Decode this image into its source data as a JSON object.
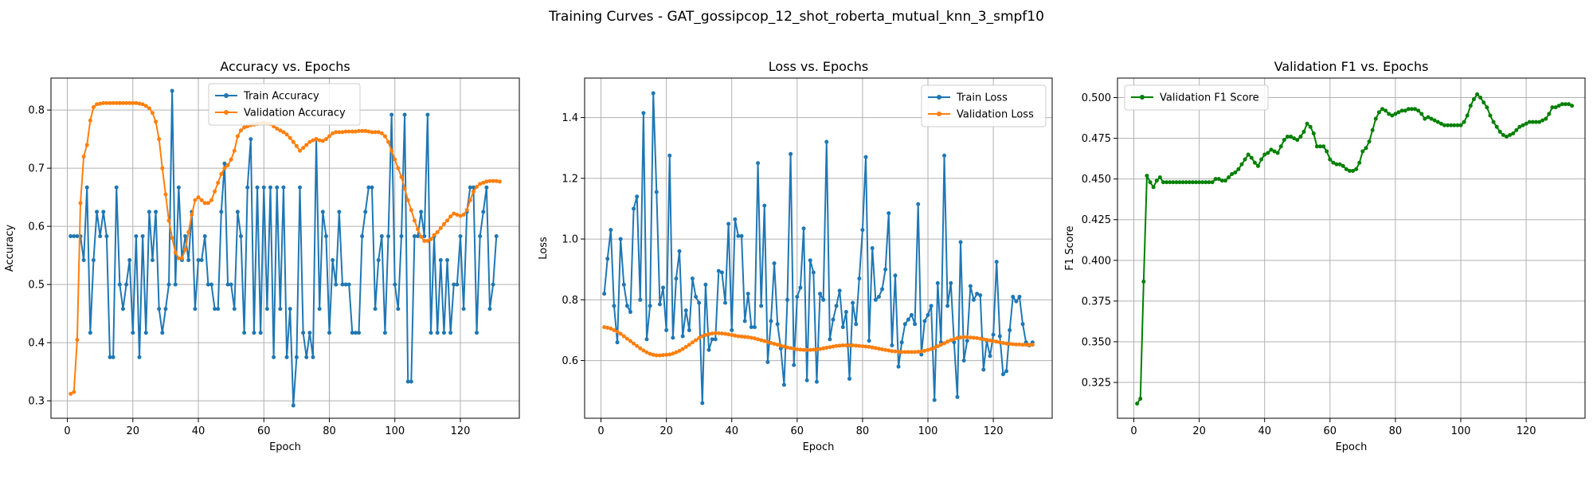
{
  "suptitle": "Training Curves - GAT_gossipcop_12_shot_roberta_mutual_knn_3_smpf10",
  "colors": {
    "blue": "#1f77b4",
    "orange": "#ff7f0e",
    "green": "#008000",
    "grid": "#b0b0b0"
  },
  "chart_data": [
    {
      "type": "line",
      "title": "Accuracy vs. Epochs",
      "xlabel": "Epoch",
      "ylabel": "Accuracy",
      "xlim": [
        -5,
        138
      ],
      "ylim": [
        0.27,
        0.855
      ],
      "xticks": [
        0,
        20,
        40,
        60,
        80,
        100,
        120
      ],
      "yticks": [
        0.3,
        0.4,
        0.5,
        0.6,
        0.7,
        0.8
      ],
      "grid": true,
      "legend": "upper-center",
      "series": [
        {
          "name": "Train Accuracy",
          "color": "#1f77b4",
          "values": [
            0.583,
            0.583,
            0.583,
            0.583,
            0.542,
            0.667,
            0.417,
            0.542,
            0.625,
            0.583,
            0.625,
            0.583,
            0.375,
            0.375,
            0.667,
            0.5,
            0.458,
            0.5,
            0.542,
            0.417,
            0.583,
            0.375,
            0.583,
            0.417,
            0.625,
            0.542,
            0.625,
            0.458,
            0.417,
            0.458,
            0.5,
            0.833,
            0.5,
            0.667,
            0.542,
            0.583,
            0.542,
            0.625,
            0.458,
            0.542,
            0.542,
            0.583,
            0.5,
            0.5,
            0.458,
            0.458,
            0.625,
            0.708,
            0.5,
            0.5,
            0.458,
            0.625,
            0.583,
            0.417,
            0.667,
            0.75,
            0.417,
            0.667,
            0.417,
            0.667,
            0.458,
            0.667,
            0.375,
            0.667,
            0.458,
            0.667,
            0.375,
            0.458,
            0.292,
            0.375,
            0.667,
            0.417,
            0.375,
            0.417,
            0.375,
            0.75,
            0.458,
            0.625,
            0.583,
            0.417,
            0.542,
            0.5,
            0.625,
            0.5,
            0.5,
            0.5,
            0.417,
            0.417,
            0.417,
            0.583,
            0.625,
            0.667,
            0.667,
            0.458,
            0.542,
            0.583,
            0.417,
            0.583,
            0.792,
            0.5,
            0.458,
            0.583,
            0.792,
            0.333,
            0.333,
            0.583,
            0.583,
            0.625,
            0.583,
            0.792,
            0.417,
            0.583,
            0.417,
            0.542,
            0.417,
            0.542,
            0.417,
            0.5,
            0.5,
            0.583,
            0.458,
            0.625,
            0.667,
            0.667,
            0.417,
            0.583,
            0.625,
            0.667,
            0.458,
            0.5,
            0.583
          ]
        },
        {
          "name": "Validation Accuracy",
          "color": "#ff7f0e",
          "values": [
            0.312,
            0.315,
            0.405,
            0.64,
            0.72,
            0.74,
            0.782,
            0.805,
            0.81,
            0.811,
            0.812,
            0.812,
            0.812,
            0.812,
            0.812,
            0.812,
            0.812,
            0.812,
            0.812,
            0.812,
            0.812,
            0.811,
            0.81,
            0.807,
            0.803,
            0.795,
            0.78,
            0.75,
            0.7,
            0.655,
            0.61,
            0.58,
            0.555,
            0.545,
            0.545,
            0.56,
            0.59,
            0.62,
            0.645,
            0.65,
            0.645,
            0.64,
            0.64,
            0.645,
            0.66,
            0.675,
            0.69,
            0.7,
            0.705,
            0.715,
            0.73,
            0.755,
            0.765,
            0.77,
            0.772,
            0.774,
            0.775,
            0.776,
            0.777,
            0.778,
            0.777,
            0.776,
            0.772,
            0.768,
            0.765,
            0.762,
            0.758,
            0.752,
            0.745,
            0.738,
            0.73,
            0.735,
            0.74,
            0.745,
            0.748,
            0.75,
            0.748,
            0.747,
            0.75,
            0.755,
            0.76,
            0.762,
            0.762,
            0.762,
            0.763,
            0.763,
            0.763,
            0.763,
            0.764,
            0.764,
            0.764,
            0.763,
            0.762,
            0.762,
            0.762,
            0.76,
            0.755,
            0.745,
            0.73,
            0.715,
            0.7,
            0.685,
            0.665,
            0.645,
            0.628,
            0.61,
            0.595,
            0.582,
            0.575,
            0.575,
            0.578,
            0.585,
            0.59,
            0.597,
            0.604,
            0.61,
            0.617,
            0.622,
            0.62,
            0.618,
            0.62,
            0.628,
            0.645,
            0.66,
            0.668,
            0.673,
            0.675,
            0.677,
            0.678,
            0.678,
            0.678,
            0.677
          ]
        }
      ]
    },
    {
      "type": "line",
      "title": "Loss vs. Epochs",
      "xlabel": "Epoch",
      "ylabel": "Loss",
      "xlim": [
        -5,
        138
      ],
      "ylim": [
        0.41,
        1.53
      ],
      "xticks": [
        0,
        20,
        40,
        60,
        80,
        100,
        120
      ],
      "yticks": [
        0.6,
        0.8,
        1.0,
        1.2,
        1.4
      ],
      "grid": true,
      "legend": "upper-right",
      "series": [
        {
          "name": "Train Loss",
          "color": "#1f77b4",
          "values": [
            0.82,
            0.935,
            1.03,
            0.78,
            0.66,
            1.0,
            0.85,
            0.78,
            0.76,
            1.1,
            1.14,
            0.8,
            1.415,
            0.67,
            0.78,
            1.48,
            1.155,
            0.785,
            0.84,
            0.7,
            1.275,
            0.675,
            0.87,
            0.96,
            0.68,
            0.765,
            0.7,
            0.87,
            0.81,
            0.79,
            0.46,
            0.85,
            0.635,
            0.67,
            0.67,
            0.895,
            0.89,
            0.79,
            1.05,
            0.7,
            1.065,
            1.01,
            1.01,
            0.73,
            0.82,
            0.71,
            0.71,
            1.25,
            0.78,
            1.11,
            0.595,
            0.73,
            0.92,
            0.72,
            0.64,
            0.52,
            0.8,
            1.28,
            0.585,
            0.81,
            0.84,
            1.035,
            0.535,
            0.93,
            0.89,
            0.53,
            0.82,
            0.8,
            1.32,
            0.67,
            0.735,
            0.78,
            0.83,
            0.71,
            0.76,
            0.54,
            0.79,
            0.72,
            0.87,
            1.03,
            1.27,
            0.665,
            0.97,
            0.8,
            0.81,
            0.835,
            0.9,
            1.085,
            0.65,
            0.88,
            0.58,
            0.66,
            0.72,
            0.735,
            0.75,
            0.72,
            1.115,
            0.62,
            0.73,
            0.75,
            0.78,
            0.47,
            0.855,
            0.66,
            1.275,
            0.78,
            0.855,
            0.66,
            0.48,
            0.99,
            0.6,
            0.665,
            0.845,
            0.8,
            0.82,
            0.815,
            0.57,
            0.665,
            0.615,
            0.685,
            0.925,
            0.68,
            0.555,
            0.565,
            0.7,
            0.81,
            0.795,
            0.81,
            0.72,
            0.66,
            0.65,
            0.66
          ]
        },
        {
          "name": "Validation Loss",
          "color": "#ff7f0e",
          "values": [
            0.71,
            0.708,
            0.705,
            0.7,
            0.695,
            0.688,
            0.68,
            0.672,
            0.664,
            0.656,
            0.648,
            0.64,
            0.633,
            0.627,
            0.622,
            0.619,
            0.617,
            0.617,
            0.618,
            0.619,
            0.62,
            0.623,
            0.627,
            0.632,
            0.638,
            0.645,
            0.652,
            0.66,
            0.667,
            0.674,
            0.68,
            0.684,
            0.687,
            0.689,
            0.69,
            0.69,
            0.689,
            0.688,
            0.686,
            0.684,
            0.682,
            0.68,
            0.679,
            0.678,
            0.677,
            0.675,
            0.673,
            0.67,
            0.667,
            0.664,
            0.661,
            0.658,
            0.655,
            0.652,
            0.649,
            0.646,
            0.643,
            0.641,
            0.639,
            0.637,
            0.636,
            0.635,
            0.635,
            0.635,
            0.636,
            0.637,
            0.638,
            0.64,
            0.642,
            0.644,
            0.646,
            0.648,
            0.649,
            0.65,
            0.65,
            0.65,
            0.65,
            0.649,
            0.648,
            0.647,
            0.646,
            0.645,
            0.643,
            0.641,
            0.639,
            0.637,
            0.635,
            0.633,
            0.631,
            0.63,
            0.629,
            0.628,
            0.628,
            0.628,
            0.628,
            0.628,
            0.629,
            0.63,
            0.632,
            0.635,
            0.638,
            0.642,
            0.647,
            0.652,
            0.657,
            0.662,
            0.667,
            0.671,
            0.674,
            0.676,
            0.677,
            0.677,
            0.676,
            0.675,
            0.674,
            0.672,
            0.67,
            0.668,
            0.666,
            0.664,
            0.662,
            0.66,
            0.658,
            0.656,
            0.655,
            0.654,
            0.653,
            0.653,
            0.652,
            0.652,
            0.652,
            0.652
          ]
        }
      ]
    },
    {
      "type": "line",
      "title": "Validation F1 vs. Epochs",
      "xlabel": "Epoch",
      "ylabel": "F1 Score",
      "xlim": [
        -5,
        138
      ],
      "ylim": [
        0.303,
        0.512
      ],
      "xticks": [
        0,
        20,
        40,
        60,
        80,
        100,
        120
      ],
      "yticks": [
        0.325,
        0.35,
        0.375,
        0.4,
        0.425,
        0.45,
        0.475,
        0.5
      ],
      "grid": true,
      "legend": "upper-left",
      "series": [
        {
          "name": "Validation F1 Score",
          "color": "#008000",
          "values": [
            0.312,
            0.315,
            0.387,
            0.452,
            0.448,
            0.445,
            0.449,
            0.451,
            0.448,
            0.448,
            0.448,
            0.448,
            0.448,
            0.448,
            0.448,
            0.448,
            0.448,
            0.448,
            0.448,
            0.448,
            0.448,
            0.448,
            0.448,
            0.448,
            0.45,
            0.45,
            0.449,
            0.449,
            0.451,
            0.453,
            0.454,
            0.456,
            0.459,
            0.462,
            0.465,
            0.463,
            0.46,
            0.458,
            0.462,
            0.465,
            0.466,
            0.468,
            0.467,
            0.466,
            0.47,
            0.474,
            0.476,
            0.476,
            0.475,
            0.474,
            0.476,
            0.479,
            0.484,
            0.482,
            0.478,
            0.47,
            0.47,
            0.47,
            0.467,
            0.462,
            0.46,
            0.459,
            0.459,
            0.458,
            0.456,
            0.455,
            0.455,
            0.456,
            0.46,
            0.467,
            0.469,
            0.473,
            0.48,
            0.487,
            0.491,
            0.493,
            0.492,
            0.49,
            0.489,
            0.49,
            0.491,
            0.492,
            0.492,
            0.493,
            0.493,
            0.493,
            0.492,
            0.49,
            0.487,
            0.488,
            0.487,
            0.486,
            0.485,
            0.484,
            0.483,
            0.483,
            0.483,
            0.483,
            0.483,
            0.483,
            0.485,
            0.489,
            0.495,
            0.499,
            0.502,
            0.5,
            0.497,
            0.494,
            0.489,
            0.485,
            0.482,
            0.479,
            0.477,
            0.476,
            0.477,
            0.478,
            0.48,
            0.482,
            0.483,
            0.484,
            0.485,
            0.485,
            0.485,
            0.485,
            0.486,
            0.487,
            0.49,
            0.494,
            0.494,
            0.495,
            0.496,
            0.496,
            0.496,
            0.495
          ]
        }
      ]
    }
  ]
}
